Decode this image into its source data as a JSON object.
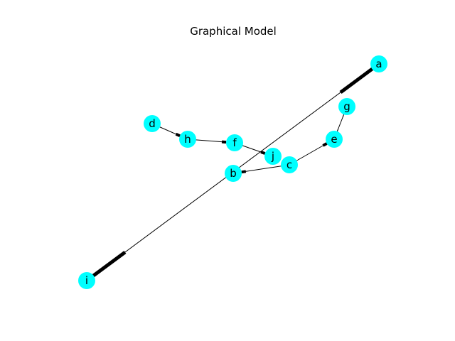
{
  "title": "Graphical Model",
  "node_color": "#00ffff",
  "edge_color": "#000000",
  "nodes": [
    {
      "id": "a",
      "label": "a"
    },
    {
      "id": "b",
      "label": "b"
    },
    {
      "id": "c",
      "label": "c"
    },
    {
      "id": "d",
      "label": "d"
    },
    {
      "id": "e",
      "label": "e"
    },
    {
      "id": "f",
      "label": "f"
    },
    {
      "id": "g",
      "label": "g"
    },
    {
      "id": "h",
      "label": "h"
    },
    {
      "id": "i",
      "label": "i"
    },
    {
      "id": "j",
      "label": "j"
    }
  ],
  "edges": [
    {
      "from": "i",
      "to": "a",
      "directed": false
    },
    {
      "from": "d",
      "to": "h",
      "directed": true
    },
    {
      "from": "h",
      "to": "f",
      "directed": true
    },
    {
      "from": "f",
      "to": "j",
      "directed": true
    },
    {
      "from": "c",
      "to": "b",
      "directed": true
    },
    {
      "from": "c",
      "to": "e",
      "directed": true
    },
    {
      "from": "e",
      "to": "g",
      "directed": false
    }
  ]
}
